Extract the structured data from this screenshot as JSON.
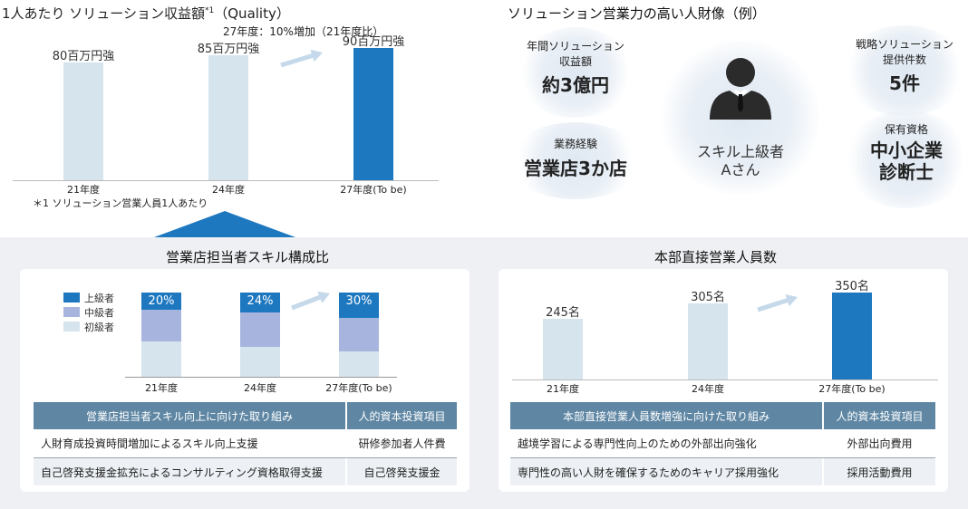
{
  "top_left": {
    "title": "1人あたり ソリューション収益額",
    "title_sup": "*1",
    "title_suffix": "（Quality）",
    "annotation": "27年度：10%増加（21年度比）",
    "footnote": "＊1 ソリューション営業人員1人あたり"
  },
  "top_right": {
    "title": "ソリューション営業力の高い人財像（例）",
    "person_label_line1": "スキル上級者",
    "person_label_line2": "Aさん",
    "attributes": [
      {
        "label_line1": "年間ソリューション",
        "label_line2": "収益額",
        "value": "約3億円"
      },
      {
        "label_line1": "業務経験",
        "label_line2": "",
        "value": "営業店3か店"
      },
      {
        "label_line1": "戦略ソリューション",
        "label_line2": "提供件数",
        "value": "5件"
      },
      {
        "label_line1": "保有資格",
        "label_line2": "",
        "value": "中小企業",
        "value_line2": "診断士"
      }
    ]
  },
  "skill_section": {
    "title": "営業店担当者スキル構成比",
    "legend": [
      "上級者",
      "中級者",
      "初級者"
    ],
    "table_header_left": "営業店担当者スキル向上に向けた取り組み",
    "table_header_right": "人的資本投資項目",
    "rows": [
      {
        "left": "人財育成投資時間増加によるスキル向上支援",
        "right": "研修参加者人件費"
      },
      {
        "left": "自己啓発支援金拡充によるコンサルティング資格取得支援",
        "right": "自己啓発支援金"
      }
    ]
  },
  "staff_section": {
    "title": "本部直接営業人員数",
    "table_header_left": "本部直接営業人員数増強に向けた取り組み",
    "table_header_right": "人的資本投資項目",
    "rows": [
      {
        "left": "越境学習による専門性向上のための外部出向強化",
        "right": "外部出向費用"
      },
      {
        "left": "専門性の高い人財を確保するためのキャリア採用強化",
        "right": "採用活動費用"
      }
    ]
  },
  "colors": {
    "light_bar": "#d6e4ee",
    "target_bar": "#1e78c0",
    "advanced": "#1e78c0",
    "intermediate": "#a7b5de",
    "beginner": "#d6e4ee",
    "arrow": "#c5d9ea",
    "table_header": "#5f87a4"
  },
  "chart_data": [
    {
      "type": "bar",
      "title": "1人あたり ソリューション収益額（Quality）",
      "categories": [
        "21年度",
        "24年度",
        "27年度(To be)"
      ],
      "values": [
        80,
        85,
        90
      ],
      "value_labels": [
        "80百万円強",
        "85百万円強",
        "90百万円強"
      ],
      "unit": "百万円",
      "highlight_index": 2
    },
    {
      "type": "bar",
      "subtype": "stacked-percent",
      "title": "営業店担当者スキル構成比",
      "categories": [
        "21年度",
        "24年度",
        "27年度(To be)"
      ],
      "series": [
        {
          "name": "上級者",
          "values": [
            20,
            24,
            30
          ],
          "labels": [
            "20%",
            "24%",
            "30%"
          ]
        },
        {
          "name": "中級者",
          "values": [
            38,
            40,
            40
          ]
        },
        {
          "name": "初級者",
          "values": [
            42,
            36,
            30
          ]
        }
      ],
      "legend": "top-left"
    },
    {
      "type": "bar",
      "title": "本部直接営業人員数",
      "categories": [
        "21年度",
        "24年度",
        "27年度(To be)"
      ],
      "values": [
        245,
        305,
        350
      ],
      "value_labels": [
        "245名",
        "305名",
        "350名"
      ],
      "highlight_index": 2
    }
  ]
}
